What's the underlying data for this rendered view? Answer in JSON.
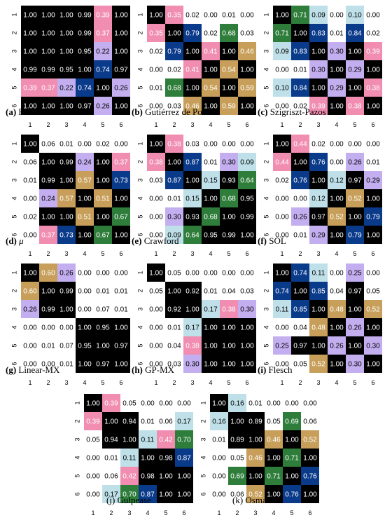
{
  "palette": [
    "#000000",
    "#f08db0",
    "#0a3a8a",
    "#c3aef0",
    "#c79f5a",
    "#2e7d3a",
    "#ffffff",
    "#bfe0e8"
  ],
  "ticks": [
    "1",
    "2",
    "3",
    "4",
    "5",
    "6"
  ],
  "chart_data": [
    {
      "type": "heatmap",
      "label": "(a)",
      "title": "Fernández-Huerta",
      "values": [
        [
          1.0,
          1.0,
          1.0,
          0.99,
          0.39,
          1.0
        ],
        [
          1.0,
          1.0,
          1.0,
          0.99,
          0.37,
          1.0
        ],
        [
          1.0,
          1.0,
          1.0,
          0.95,
          0.22,
          1.0
        ],
        [
          0.99,
          0.99,
          0.95,
          1.0,
          0.74,
          0.97
        ],
        [
          0.39,
          0.37,
          0.22,
          0.74,
          1.0,
          0.26
        ],
        [
          1.0,
          1.0,
          1.0,
          0.97,
          0.26,
          1.0
        ]
      ]
    },
    {
      "type": "heatmap",
      "label": "(b)",
      "title": "Gutiérrez de Polini",
      "values": [
        [
          1.0,
          0.35,
          0.02,
          0.0,
          0.01,
          0.0
        ],
        [
          0.35,
          1.0,
          0.79,
          0.02,
          0.68,
          0.03
        ],
        [
          0.02,
          0.79,
          1.0,
          0.41,
          1.0,
          0.46
        ],
        [
          0.0,
          0.02,
          0.41,
          1.0,
          0.54,
          1.0
        ],
        [
          0.01,
          0.68,
          1.0,
          0.54,
          1.0,
          0.59
        ],
        [
          0.0,
          0.03,
          0.46,
          1.0,
          0.59,
          1.0
        ]
      ]
    },
    {
      "type": "heatmap",
      "label": "(c)",
      "title": "Szigriszt-Pazos",
      "values": [
        [
          1.0,
          0.71,
          0.09,
          0.0,
          0.1,
          0.0
        ],
        [
          0.71,
          1.0,
          0.83,
          0.01,
          0.84,
          0.02
        ],
        [
          0.09,
          0.83,
          1.0,
          0.3,
          1.0,
          0.39
        ],
        [
          0.0,
          0.01,
          0.3,
          1.0,
          0.29,
          1.0
        ],
        [
          0.1,
          0.84,
          1.0,
          0.29,
          1.0,
          0.38
        ],
        [
          0.0,
          0.02,
          0.39,
          1.0,
          0.38,
          1.0
        ]
      ]
    },
    {
      "type": "heatmap",
      "label": "(d)",
      "title": "μ",
      "values": [
        [
          1.0,
          0.06,
          0.01,
          0.0,
          0.02,
          0.0
        ],
        [
          0.06,
          1.0,
          0.99,
          0.24,
          1.0,
          0.37
        ],
        [
          0.01,
          0.99,
          1.0,
          0.57,
          1.0,
          0.73
        ],
        [
          0.0,
          0.24,
          0.57,
          1.0,
          0.51,
          1.0
        ],
        [
          0.02,
          1.0,
          1.0,
          0.51,
          1.0,
          0.67
        ],
        [
          0.0,
          0.37,
          0.73,
          1.0,
          0.67,
          1.0
        ]
      ]
    },
    {
      "type": "heatmap",
      "label": "(e)",
      "title": "Crawford",
      "values": [
        [
          1.0,
          0.38,
          0.03,
          0.0,
          0.0,
          0.0
        ],
        [
          0.38,
          1.0,
          0.87,
          0.01,
          0.3,
          0.09
        ],
        [
          0.03,
          0.87,
          1.0,
          0.15,
          0.93,
          0.64
        ],
        [
          0.0,
          0.01,
          0.15,
          1.0,
          0.68,
          0.95
        ],
        [
          0.0,
          0.3,
          0.93,
          0.68,
          1.0,
          0.99
        ],
        [
          0.0,
          0.09,
          0.64,
          0.95,
          0.99,
          1.0
        ]
      ]
    },
    {
      "type": "heatmap",
      "label": "(f)",
      "title": "SOL",
      "values": [
        [
          1.0,
          0.44,
          0.02,
          0.0,
          0.0,
          0.0
        ],
        [
          0.44,
          1.0,
          0.76,
          0.0,
          0.26,
          0.01
        ],
        [
          0.02,
          0.76,
          1.0,
          0.12,
          0.97,
          0.29
        ],
        [
          0.0,
          0.0,
          0.12,
          1.0,
          0.52,
          1.0
        ],
        [
          0.0,
          0.26,
          0.97,
          0.52,
          1.0,
          0.79
        ],
        [
          0.0,
          0.01,
          0.29,
          1.0,
          0.79,
          1.0
        ]
      ]
    },
    {
      "type": "heatmap",
      "label": "(g)",
      "title": "Linear-MX",
      "values": [
        [
          1.0,
          0.6,
          0.26,
          0.0,
          0.0,
          0.0
        ],
        [
          0.6,
          1.0,
          0.99,
          0.0,
          0.01,
          0.01
        ],
        [
          0.26,
          0.99,
          1.0,
          0.0,
          0.07,
          0.01
        ],
        [
          0.0,
          0.0,
          0.0,
          1.0,
          0.95,
          1.0
        ],
        [
          0.0,
          0.01,
          0.07,
          0.95,
          1.0,
          0.97
        ],
        [
          0.0,
          0.0,
          0.01,
          1.0,
          0.97,
          1.0
        ]
      ]
    },
    {
      "type": "heatmap",
      "label": "(h)",
      "title": "GP-MX",
      "values": [
        [
          1.0,
          0.05,
          0.0,
          0.0,
          0.0,
          0.0
        ],
        [
          0.05,
          1.0,
          0.92,
          0.01,
          0.04,
          0.03
        ],
        [
          0.0,
          0.92,
          1.0,
          0.17,
          0.38,
          0.3
        ],
        [
          0.0,
          0.01,
          0.17,
          1.0,
          1.0,
          1.0
        ],
        [
          0.0,
          0.04,
          0.38,
          1.0,
          1.0,
          1.0
        ],
        [
          0.0,
          0.03,
          0.3,
          1.0,
          1.0,
          1.0
        ]
      ]
    },
    {
      "type": "heatmap",
      "label": "(i)",
      "title": "Flesch",
      "values": [
        [
          1.0,
          0.74,
          0.11,
          0.0,
          0.25,
          0.0
        ],
        [
          0.74,
          1.0,
          0.85,
          0.04,
          0.97,
          0.05
        ],
        [
          0.11,
          0.85,
          1.0,
          0.48,
          1.0,
          0.52
        ],
        [
          0.0,
          0.04,
          0.48,
          1.0,
          0.26,
          1.0
        ],
        [
          0.25,
          0.97,
          1.0,
          0.26,
          1.0,
          0.3
        ],
        [
          0.0,
          0.05,
          0.52,
          1.0,
          0.3,
          1.0
        ]
      ]
    },
    {
      "type": "heatmap",
      "label": "(j)",
      "title": "Gulpease",
      "values": [
        [
          1.0,
          0.39,
          0.05,
          0.0,
          0.0,
          0.0
        ],
        [
          0.39,
          1.0,
          0.94,
          0.01,
          0.06,
          0.17
        ],
        [
          0.05,
          0.94,
          1.0,
          0.11,
          0.42,
          0.7
        ],
        [
          0.0,
          0.01,
          0.11,
          1.0,
          0.98,
          0.87
        ],
        [
          0.0,
          0.06,
          0.42,
          0.98,
          1.0,
          1.0
        ],
        [
          0.0,
          0.17,
          0.7,
          0.87,
          1.0,
          1.0
        ]
      ]
    },
    {
      "type": "heatmap",
      "label": "(k)",
      "title": "Osman",
      "values": [
        [
          1.0,
          0.16,
          0.01,
          0.0,
          0.0,
          0.0
        ],
        [
          0.16,
          1.0,
          0.89,
          0.05,
          0.69,
          0.06
        ],
        [
          0.01,
          0.89,
          1.0,
          0.46,
          1.0,
          0.52
        ],
        [
          0.0,
          0.05,
          0.46,
          1.0,
          0.71,
          1.0
        ],
        [
          0.0,
          0.69,
          1.0,
          0.71,
          1.0,
          0.76
        ],
        [
          0.0,
          0.06,
          0.52,
          1.0,
          0.76,
          1.0
        ]
      ]
    }
  ]
}
